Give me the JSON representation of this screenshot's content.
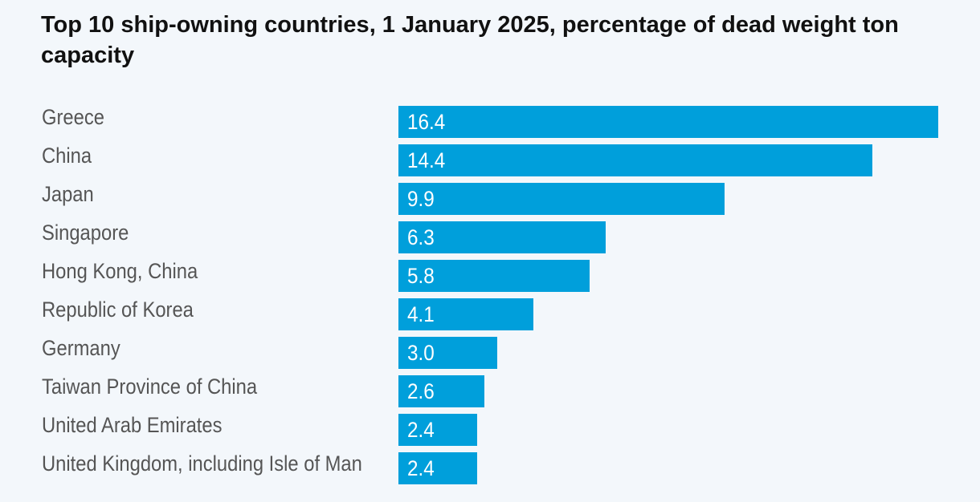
{
  "chart_data": {
    "type": "bar",
    "orientation": "horizontal",
    "title": "Top 10 ship-owning countries, 1 January 2025, percentage of dead weight ton capacity",
    "xlabel": "",
    "ylabel": "",
    "categories": [
      "Greece",
      "China",
      "Japan",
      "Singapore",
      "Hong Kong, China",
      "Republic of Korea",
      "Germany",
      "Taiwan Province of China",
      "United Arab Emirates",
      "United Kingdom, including Isle of Man"
    ],
    "values": [
      16.4,
      14.4,
      9.9,
      6.3,
      5.8,
      4.1,
      3.0,
      2.6,
      2.4,
      2.4
    ],
    "value_labels": [
      "16.4",
      "14.4",
      "9.9",
      "6.3",
      "5.8",
      "4.1",
      "3.0",
      "2.6",
      "2.4",
      "2.4"
    ],
    "xlim": [
      0,
      16.4
    ],
    "grid": false,
    "bar_color": "#009fdb"
  }
}
